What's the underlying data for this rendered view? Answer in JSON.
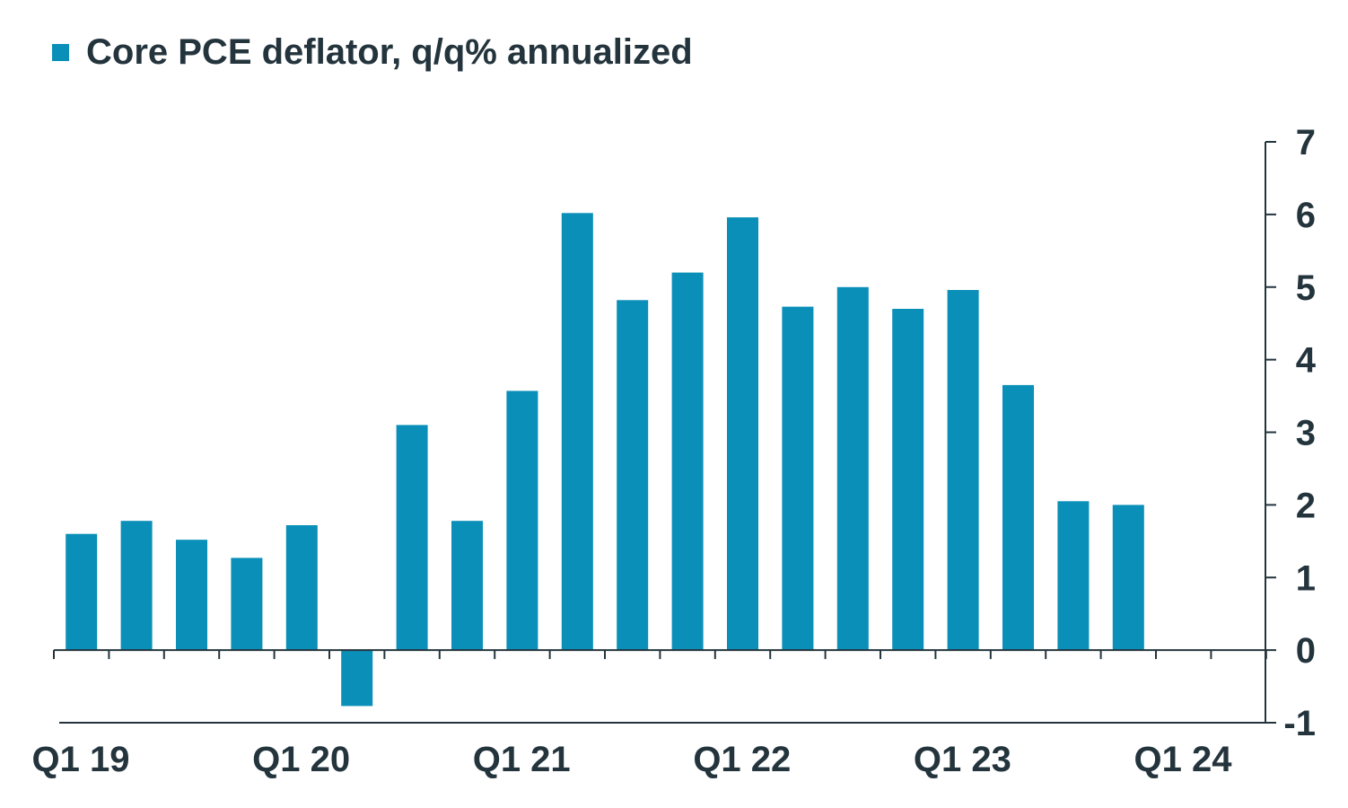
{
  "chart_data": {
    "type": "bar",
    "categories": [
      "Q1 19",
      "Q2 19",
      "Q3 19",
      "Q4 19",
      "Q1 20",
      "Q2 20",
      "Q3 20",
      "Q4 20",
      "Q1 21",
      "Q2 21",
      "Q3 21",
      "Q4 21",
      "Q1 22",
      "Q2 22",
      "Q3 22",
      "Q4 22",
      "Q1 23",
      "Q2 23",
      "Q3 23",
      "Q4 23",
      "Q1 24",
      "Q2 24"
    ],
    "series": [
      {
        "name": "Core PCE deflator, q/q% annualized",
        "values": [
          1.6,
          1.78,
          1.52,
          1.27,
          1.72,
          -0.77,
          3.1,
          1.78,
          3.57,
          6.02,
          4.82,
          5.2,
          5.96,
          4.73,
          5.0,
          4.7,
          4.96,
          3.65,
          2.05,
          2.0,
          null,
          null
        ]
      }
    ],
    "x_tick_labels": [
      "Q1 19",
      "Q1 20",
      "Q1 21",
      "Q1 22",
      "Q1 23",
      "Q1 24"
    ],
    "y_ticks": [
      "-1",
      "0",
      "1",
      "2",
      "3",
      "4",
      "5",
      "6",
      "7"
    ],
    "ylim": [
      -1,
      7
    ],
    "y_axis_side": "right",
    "legend_position": "top-left",
    "grid": false,
    "colors": {
      "bar": "#0a8fb8",
      "axis": "#24343d",
      "text": "#24343d"
    }
  }
}
